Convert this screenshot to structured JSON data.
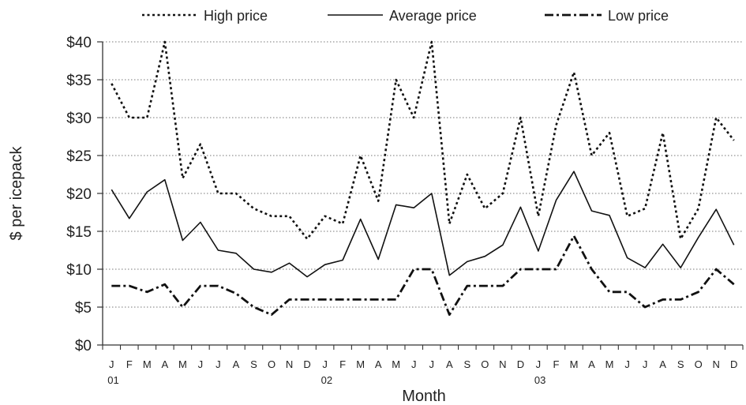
{
  "chart_data": {
    "type": "line",
    "xlabel": "Month",
    "ylabel": "$ per icepack",
    "y_tick_labels": [
      "$0",
      "$5",
      "$10",
      "$15",
      "$20",
      "$25",
      "$30",
      "$35",
      "$40"
    ],
    "ylim": [
      0,
      40
    ],
    "y_step": 5,
    "grid": "horizontal dotted",
    "legend_position": "top",
    "categories": [
      "J",
      "F",
      "M",
      "A",
      "M",
      "J",
      "J",
      "A",
      "S",
      "O",
      "N",
      "D",
      "J",
      "F",
      "M",
      "A",
      "M",
      "J",
      "J",
      "A",
      "S",
      "O",
      "N",
      "D",
      "J",
      "F",
      "M",
      "A",
      "M",
      "J",
      "J",
      "A",
      "S",
      "O",
      "N",
      "D"
    ],
    "year_labels": [
      {
        "index": 0,
        "label": "01"
      },
      {
        "index": 12,
        "label": "02"
      },
      {
        "index": 24,
        "label": "03"
      }
    ],
    "series": [
      {
        "name": "High price",
        "style": "dotted",
        "values": [
          34.5,
          30,
          30,
          40,
          22,
          26.5,
          20,
          20,
          18,
          17,
          17,
          14,
          17,
          16,
          25,
          19,
          35,
          30,
          40,
          16,
          22.5,
          18,
          20,
          30,
          17,
          29,
          36,
          25,
          28,
          17,
          18,
          28,
          14,
          18,
          30,
          27
        ]
      },
      {
        "name": "Average price",
        "style": "solid",
        "values": [
          20.5,
          16.7,
          20.2,
          21.8,
          13.8,
          16.2,
          12.5,
          12.1,
          10,
          9.6,
          10.8,
          9,
          10.6,
          11.2,
          16.6,
          11.3,
          18.5,
          18.1,
          20,
          9.2,
          11,
          11.7,
          13.2,
          18.2,
          12.4,
          19.1,
          22.9,
          17.7,
          17.1,
          11.5,
          10.2,
          13.3,
          10.2,
          14.2,
          17.9,
          13.2
        ]
      },
      {
        "name": "Low price",
        "style": "dash-dot",
        "values": [
          7.8,
          7.8,
          7,
          8,
          5,
          7.8,
          7.8,
          6.8,
          5,
          4,
          6,
          6,
          6,
          6,
          6,
          6,
          6,
          10,
          10,
          4,
          7.8,
          7.8,
          7.8,
          10,
          10,
          10,
          14.4,
          10,
          7,
          7,
          5,
          6,
          6,
          7,
          10,
          8
        ]
      }
    ]
  }
}
